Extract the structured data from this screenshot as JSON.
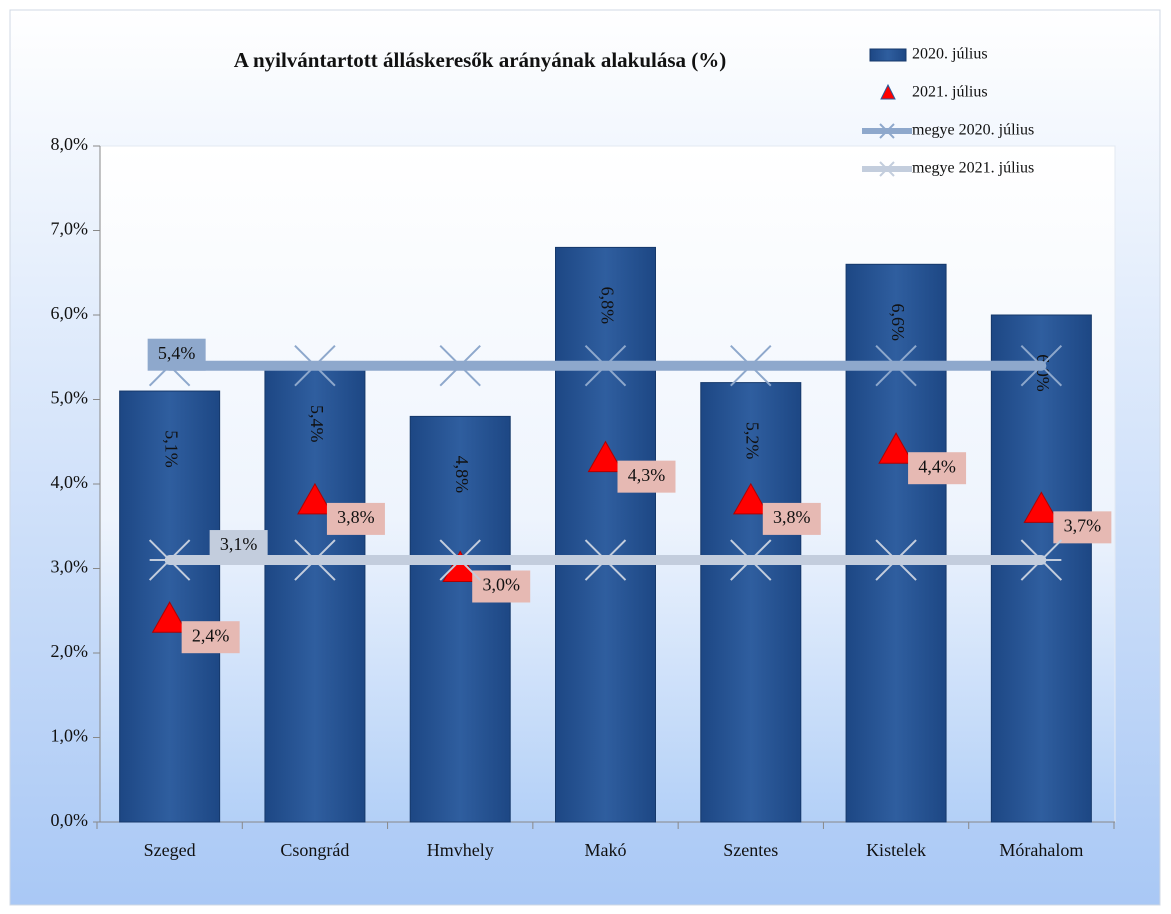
{
  "chart_data": {
    "type": "bar",
    "title": "A nyilvántartott álláskeresők arányának alakulása (%)",
    "categories": [
      "Szeged",
      "Csongrád",
      "Hmvhely",
      "Makó",
      "Szentes",
      "Kistelek",
      "Mórahalom"
    ],
    "series": [
      {
        "name": "2020. július",
        "type": "bar",
        "color": "#2a5797",
        "values": [
          5.1,
          5.4,
          4.8,
          6.8,
          5.2,
          6.6,
          6.0
        ],
        "value_labels": [
          "5,1%",
          "5,4%",
          "4,8%",
          "6,8%",
          "5,2%",
          "6,6%",
          "6,0%"
        ]
      },
      {
        "name": "2021. július",
        "type": "marker",
        "color": "#ff0000",
        "values": [
          2.4,
          3.8,
          3.0,
          4.3,
          3.8,
          4.4,
          3.7
        ],
        "value_labels": [
          "2,4%",
          "3,8%",
          "3,0%",
          "4,3%",
          "3,8%",
          "4,4%",
          "3,7%"
        ]
      },
      {
        "name": "megye 2020. július",
        "type": "line",
        "color": "#8ea8cc",
        "values": [
          5.4,
          5.4,
          5.4,
          5.4,
          5.4,
          5.4,
          5.4
        ],
        "value_labels": [
          "5,4%",
          null,
          null,
          null,
          null,
          null,
          null
        ]
      },
      {
        "name": "megye 2021. július",
        "type": "line",
        "color": "#c3cddd",
        "values": [
          3.1,
          3.1,
          3.1,
          3.1,
          3.1,
          3.1,
          3.1
        ],
        "value_labels": [
          "3,1%",
          null,
          null,
          null,
          null,
          null,
          null
        ]
      }
    ],
    "ylim": [
      0,
      8
    ],
    "yticks": [
      {
        "value": 0,
        "label": "0,0%"
      },
      {
        "value": 1,
        "label": "1,0%"
      },
      {
        "value": 2,
        "label": "2,0%"
      },
      {
        "value": 3,
        "label": "3,0%"
      },
      {
        "value": 4,
        "label": "4,0%"
      },
      {
        "value": 5,
        "label": "5,0%"
      },
      {
        "value": 6,
        "label": "6,0%"
      },
      {
        "value": 7,
        "label": "7,0%"
      },
      {
        "value": 8,
        "label": "8,0%"
      }
    ],
    "legend": "top-right"
  }
}
